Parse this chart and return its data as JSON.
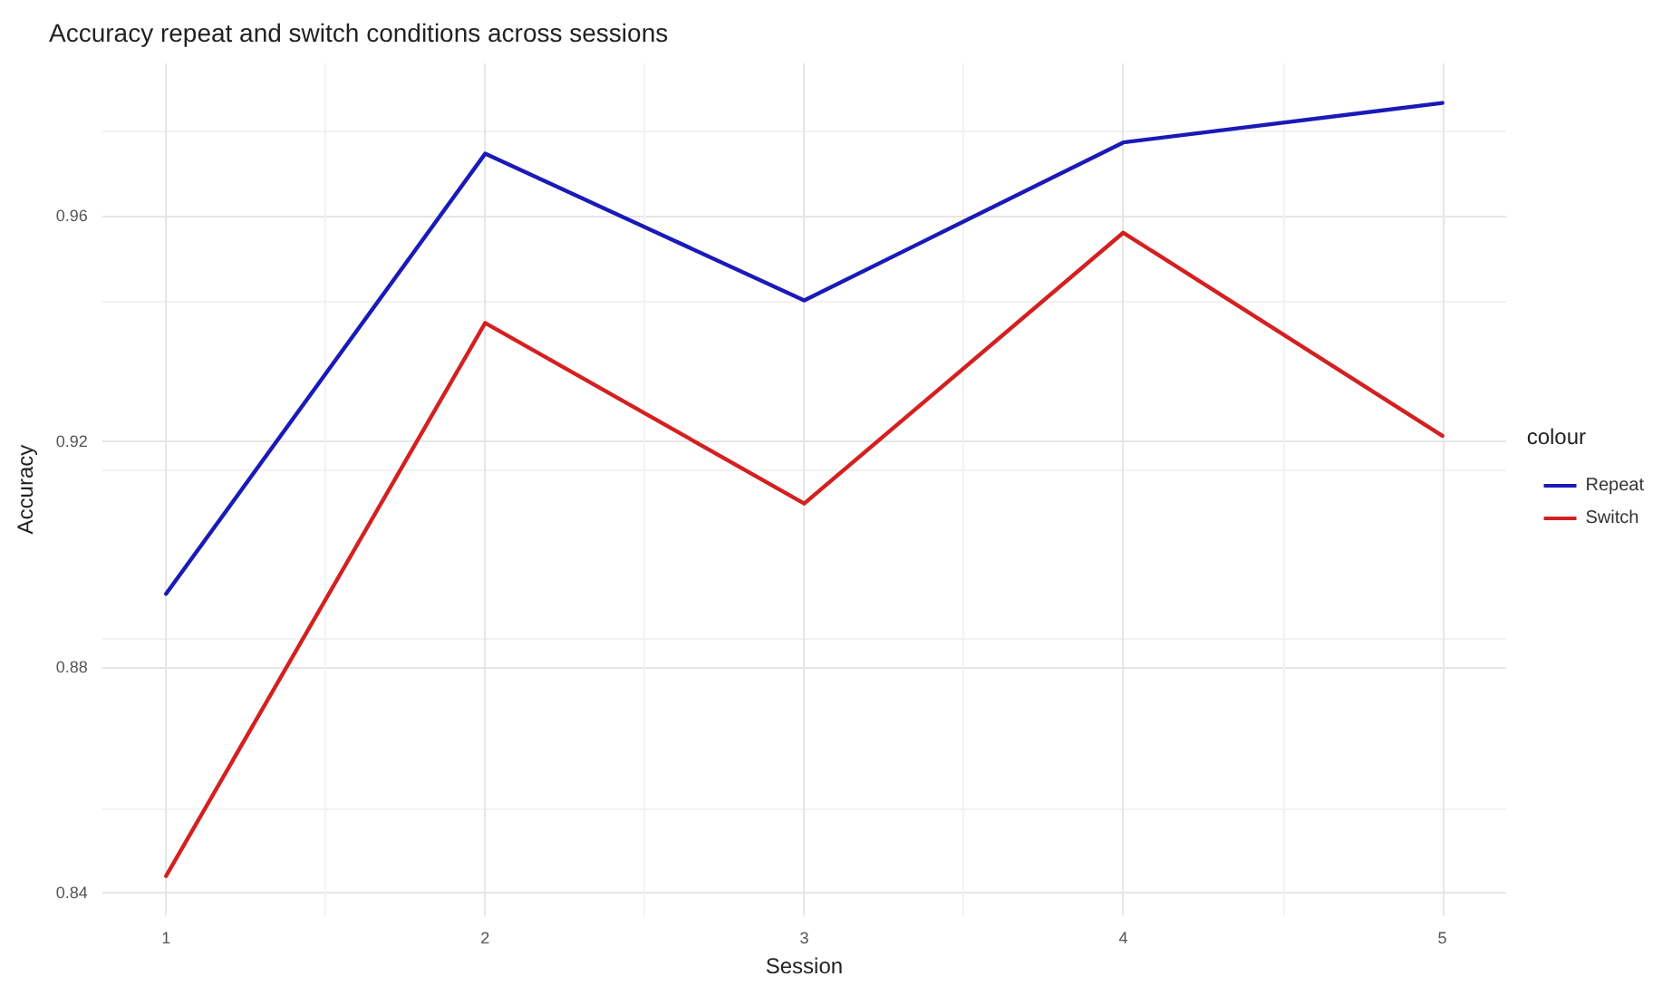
{
  "chart_data": {
    "type": "line",
    "title": "Accuracy repeat and switch conditions across sessions",
    "xlabel": "Session",
    "ylabel": "Accuracy",
    "legend_title": "colour",
    "x": [
      1,
      2,
      3,
      4,
      5
    ],
    "series": [
      {
        "name": "Repeat",
        "color": "#1a1ab8",
        "values": [
          0.893,
          0.971,
          0.945,
          0.973,
          0.98
        ]
      },
      {
        "name": "Switch",
        "color": "#d42020",
        "values": [
          0.843,
          0.941,
          0.909,
          0.957,
          0.921
        ]
      }
    ],
    "xlim": [
      0.8,
      5.2
    ],
    "xticks": [
      1,
      2,
      3,
      4,
      5
    ],
    "ylim": [
      0.836,
      0.987
    ],
    "yticks": [
      0.84,
      0.88,
      0.92,
      0.96
    ],
    "grid": true,
    "legend": "right",
    "marker": "none",
    "line_style": "solid"
  }
}
